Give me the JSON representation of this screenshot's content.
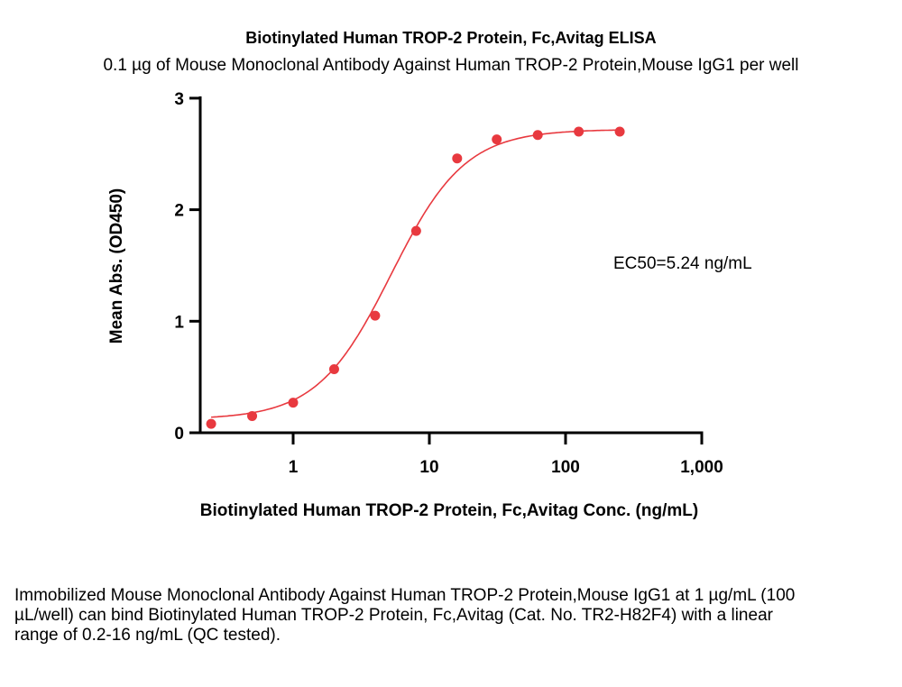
{
  "chart_data": {
    "type": "scatter",
    "title": "Biotinylated Human TROP-2 Protein, Fc,Avitag ELISA",
    "subtitle": "0.1 µg of Mouse Monoclonal Antibody Against Human TROP-2 Protein,Mouse IgG1 per well",
    "xlabel": "Biotinylated Human TROP-2 Protein, Fc,Avitag Conc. (ng/mL)",
    "ylabel": "Mean Abs. (OD450)",
    "xscale": "log",
    "xlim": [
      0.2,
      1000
    ],
    "ylim": [
      0,
      3
    ],
    "xticks": [
      {
        "v": 1,
        "label": "1"
      },
      {
        "v": 10,
        "label": "10"
      },
      {
        "v": 100,
        "label": "100"
      },
      {
        "v": 1000,
        "label": "1,000"
      }
    ],
    "yticks": [
      {
        "v": 0,
        "label": "0"
      },
      {
        "v": 1,
        "label": "1"
      },
      {
        "v": 2,
        "label": "2"
      },
      {
        "v": 3,
        "label": "3"
      }
    ],
    "x": [
      0.25,
      0.5,
      1,
      2,
      4,
      8,
      16,
      31.25,
      62.5,
      125,
      250
    ],
    "y": [
      0.08,
      0.15,
      0.27,
      0.57,
      1.05,
      1.81,
      2.46,
      2.63,
      2.67,
      2.7,
      2.7
    ],
    "fit": {
      "model": "4PL",
      "bottom": 0.12,
      "top": 2.72,
      "ec50": 5.24,
      "hill": 1.6
    },
    "annotation": "EC50=5.24 ng/mL",
    "color": "#e8393f",
    "grid": false
  },
  "caption": "Immobilized Mouse Monoclonal Antibody Against Human TROP-2 Protein,Mouse IgG1 at 1 µg/mL (100 µL/well) can bind Biotinylated Human TROP-2 Protein, Fc,Avitag (Cat. No. TR2-H82F4) with a linear range of 0.2-16 ng/mL (QC tested)."
}
